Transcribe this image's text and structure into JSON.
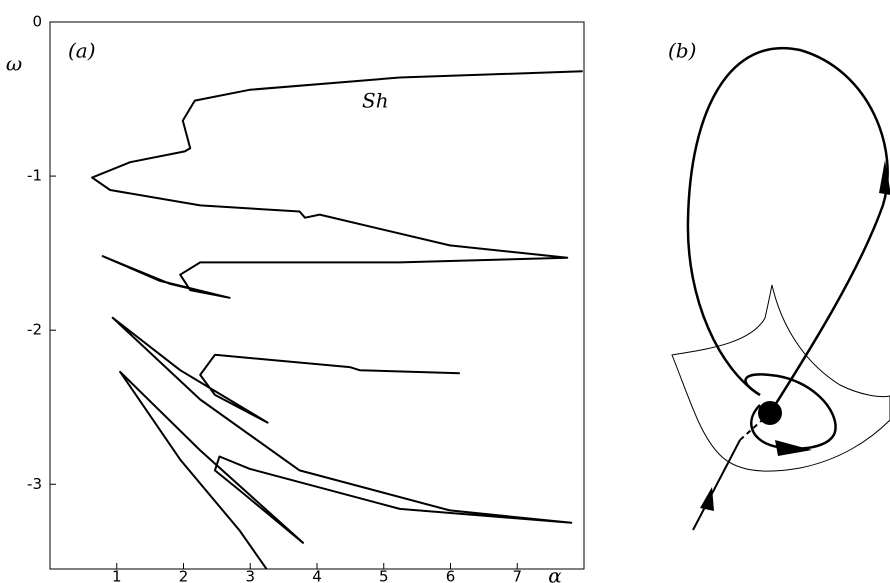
{
  "chart_data": {
    "type": "line",
    "xlabel": "α",
    "ylabel": "ω",
    "annotations": [
      "(a)",
      "Sh",
      "(b)"
    ],
    "xlim": [
      0,
      8
    ],
    "ylim": [
      -3.55,
      0
    ],
    "xticks": [
      1,
      2,
      3,
      4,
      5,
      6,
      7
    ],
    "yticks": [
      0,
      -1,
      -2,
      -3
    ],
    "series": [
      {
        "color": "#000000",
        "x": [
          7.98,
          5.24,
          2.99,
          2.17,
          1.99,
          2.1,
          2.02,
          1.2,
          0.63,
          0.9,
          2.25,
          3.74,
          3.82,
          4.04,
          5.99,
          7.75,
          5.24,
          2.25,
          1.95,
          2.1,
          2.69,
          1.65,
          0.79,
          1.8,
          2.69
        ],
        "values": [
          -0.32,
          -0.36,
          -0.44,
          -0.51,
          -0.64,
          -0.82,
          -0.84,
          -0.91,
          -1.01,
          -1.09,
          -1.19,
          -1.23,
          -1.27,
          -1.25,
          -1.45,
          -1.53,
          -1.56,
          -1.56,
          -1.64,
          -1.74,
          -1.79,
          -1.68,
          -1.52,
          -1.7,
          -1.79
        ]
      },
      {
        "color": "#000000",
        "x": [
          6.14,
          4.64,
          4.49,
          2.47,
          2.25,
          2.47,
          3.26,
          1.95,
          0.94,
          2.25,
          3.74,
          5.99,
          7.81,
          5.24,
          2.99,
          2.54,
          2.47,
          2.84,
          3.79,
          2.25,
          1.05,
          1.95,
          2.84,
          3.26
        ],
        "values": [
          -2.28,
          -2.26,
          -2.24,
          -2.16,
          -2.29,
          -2.42,
          -2.6,
          -2.26,
          -1.92,
          -2.45,
          -2.91,
          -3.17,
          -3.25,
          -3.16,
          -2.9,
          -2.82,
          -2.91,
          -3.04,
          -3.38,
          -2.78,
          -2.27,
          -2.84,
          -3.3,
          -3.56
        ]
      }
    ]
  }
}
